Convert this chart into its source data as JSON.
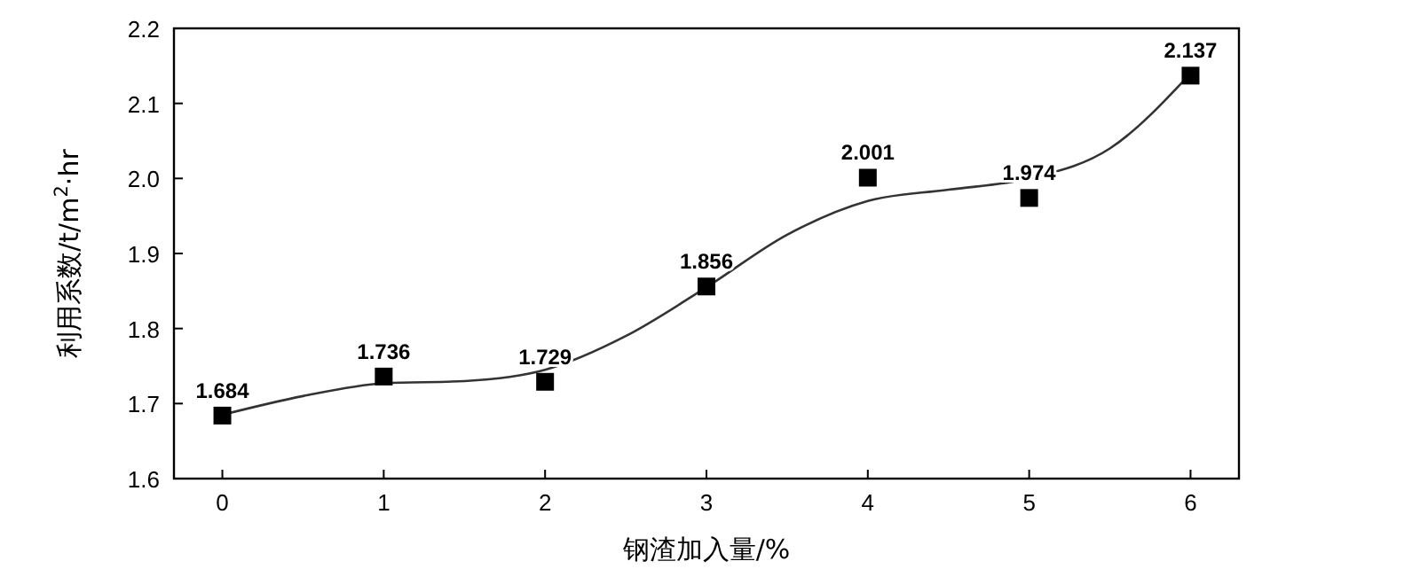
{
  "chart_data": {
    "type": "scatter",
    "xlabel": "钢渣加入量/%",
    "ylabel": "利用系数/t/m$^{2}$·hr",
    "x": [
      0,
      1,
      2,
      3,
      4,
      5,
      6
    ],
    "series": [
      {
        "color": "#000000",
        "values": [
          1.684,
          1.736,
          1.729,
          1.856,
          2.001,
          1.974,
          2.137
        ],
        "marker": "square",
        "data_labels": true
      },
      {
        "type": "line",
        "color": "#333333",
        "x": [
          0,
          0.5,
          1,
          1.5,
          2,
          2.5,
          3,
          3.5,
          4,
          4.5,
          5,
          5.5,
          6
        ],
        "values": [
          1.685,
          1.71,
          1.727,
          1.73,
          1.745,
          1.79,
          1.855,
          1.925,
          1.97,
          1.985,
          2.0,
          2.04,
          2.14
        ],
        "marker": "none",
        "line_style": "solid"
      }
    ],
    "xlim": [
      -0.3,
      6.3
    ],
    "xticks": [
      0,
      1,
      2,
      3,
      4,
      5,
      6
    ],
    "ylim": [
      1.6,
      2.2
    ],
    "yticks": [
      {
        "value": 1.6,
        "label": "1.6"
      },
      {
        "value": 1.7,
        "label": "1.7"
      },
      {
        "value": 1.8,
        "label": "1.8"
      },
      {
        "value": 1.9,
        "label": "1.9"
      },
      {
        "value": 2.0,
        "label": "2.0"
      },
      {
        "value": 2.1,
        "label": "2.1"
      },
      {
        "value": 2.2,
        "label": "2.2"
      }
    ],
    "grid": false
  }
}
